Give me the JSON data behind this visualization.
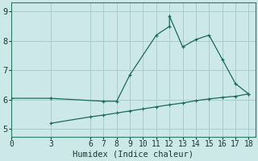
{
  "xlabel": "Humidex (Indice chaleur)",
  "bg_color": "#cce8e8",
  "grid_color": "#aacccc",
  "line_color": "#1a6a5a",
  "upper_line": {
    "x": [
      0,
      3,
      7,
      8,
      9,
      11,
      12,
      12,
      13,
      14,
      15,
      16,
      17,
      18
    ],
    "y": [
      6.05,
      6.05,
      5.95,
      5.95,
      6.85,
      8.2,
      8.5,
      8.85,
      7.8,
      8.05,
      8.2,
      7.38,
      6.55,
      6.2
    ]
  },
  "lower_line": {
    "x": [
      3,
      6,
      7,
      8,
      9,
      10,
      11,
      12,
      13,
      14,
      15,
      16,
      17,
      18
    ],
    "y": [
      5.2,
      5.42,
      5.48,
      5.55,
      5.62,
      5.69,
      5.76,
      5.83,
      5.89,
      5.97,
      6.03,
      6.08,
      6.12,
      6.2
    ]
  },
  "xlim": [
    0,
    18.5
  ],
  "ylim": [
    4.75,
    9.3
  ],
  "xticks": [
    0,
    3,
    6,
    7,
    8,
    9,
    10,
    11,
    12,
    13,
    14,
    15,
    16,
    17,
    18
  ],
  "yticks": [
    5,
    6,
    7,
    8,
    9
  ],
  "tick_fontsize": 7,
  "xlabel_fontsize": 7.5
}
